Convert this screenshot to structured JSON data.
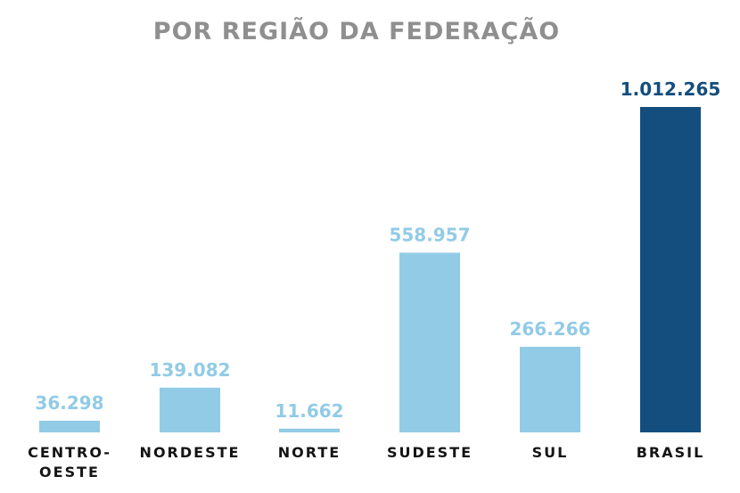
{
  "chart_data": {
    "type": "bar",
    "title": "POR REGIÃO DA FEDERAÇÃO",
    "categories": [
      [
        "CENTRO-",
        "OESTE"
      ],
      [
        "NORDESTE"
      ],
      [
        "NORTE"
      ],
      [
        "SUDESTE"
      ],
      [
        "SUL"
      ],
      [
        "BRASIL"
      ]
    ],
    "values": [
      36298,
      139082,
      11662,
      558957,
      266266,
      1012265
    ],
    "value_labels": [
      "36.298",
      "139.082",
      "11.662",
      "558.957",
      "266.266",
      "1.012.265"
    ],
    "ylim": [
      0,
      1012265
    ],
    "grid": false,
    "colors": {
      "region": "#92cbe6",
      "total": "#134e7e",
      "region_label": "#92cbe6",
      "total_label": "#134e7e",
      "title": "#8f8f8f",
      "category_text": "#141414"
    },
    "highlight_index": 5
  }
}
